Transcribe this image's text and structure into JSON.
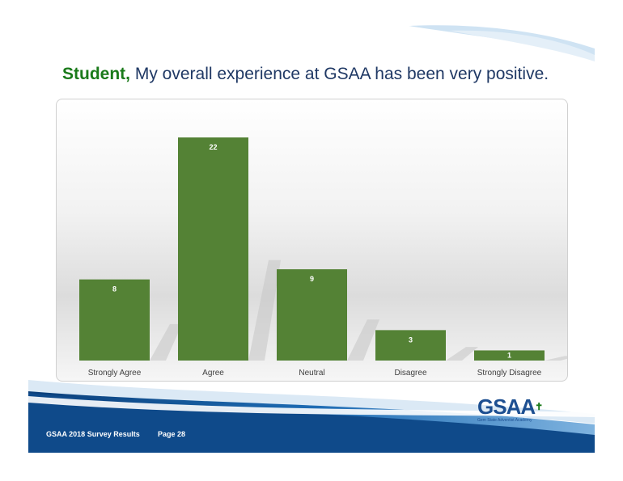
{
  "title": {
    "lead": "Student,",
    "rest": " My overall experience at GSAA has been very positive."
  },
  "footer": {
    "left": "GSAA 2018 Survey Results",
    "page": "Page 28"
  },
  "logo": {
    "mark": "GSAA",
    "sub": "Gem State Adventist Academy",
    "icon": "cross-icon"
  },
  "colors": {
    "bar": "#548235",
    "title": "#1f3864",
    "lead": "#1a7a1a",
    "band": "#0f4a8a"
  },
  "chart_data": {
    "type": "bar",
    "categories": [
      "Strongly Agree",
      "Agree",
      "Neutral",
      "Disagree",
      "Strongly Disagree"
    ],
    "values": [
      8,
      22,
      9,
      3,
      1
    ],
    "title": "",
    "xlabel": "",
    "ylabel": "",
    "ylim": [
      0,
      22
    ],
    "grid": false,
    "legend": "none",
    "data_labels": true
  }
}
